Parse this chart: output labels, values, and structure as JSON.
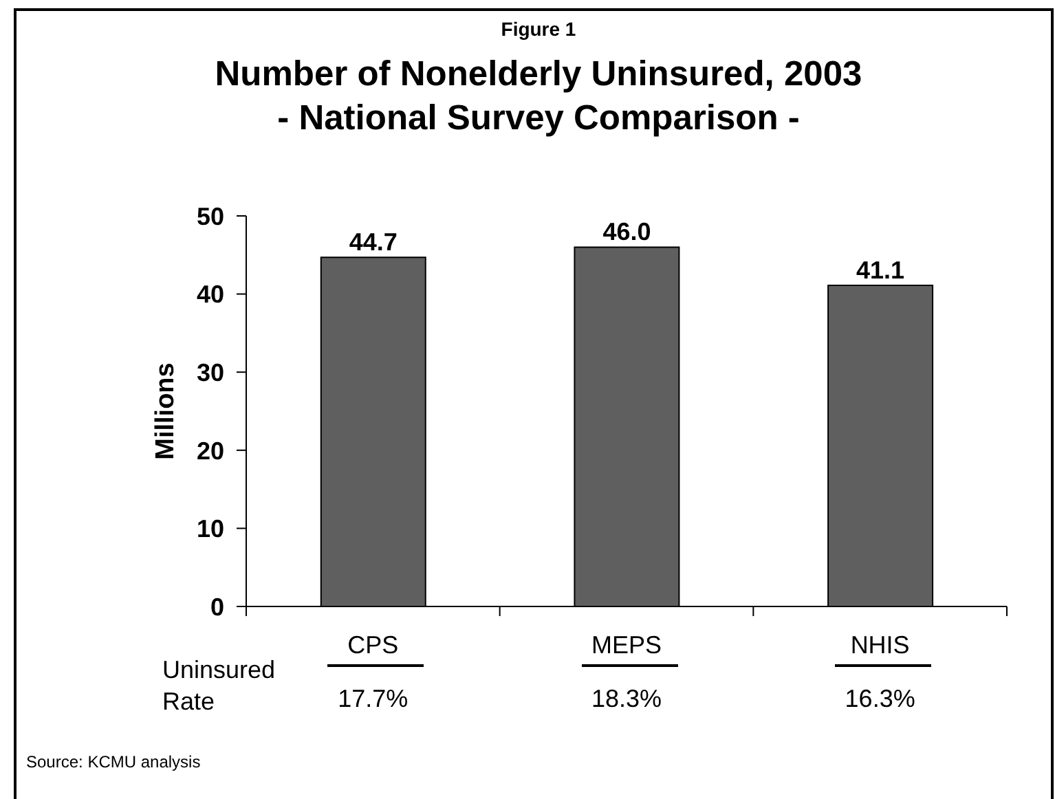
{
  "chart_data": {
    "type": "bar",
    "title": "Number of Nonelderly Uninsured, 2003",
    "subtitle": "- National Survey Comparison -",
    "ylabel": "Millions",
    "categories": [
      "CPS",
      "MEPS",
      "NHIS"
    ],
    "values": [
      44.7,
      46.0,
      41.1
    ],
    "value_labels": [
      "44.7",
      "46.0",
      "41.1"
    ],
    "color": "#5f5f5f",
    "ylim": [
      0,
      50
    ],
    "yticks": [
      0,
      10,
      20,
      30,
      40,
      50
    ],
    "annotations": [
      "Figure 1",
      "Uninsured Rate",
      "17.7%",
      "18.3%",
      "16.3%",
      "Source: KCMU analysis"
    ]
  }
}
